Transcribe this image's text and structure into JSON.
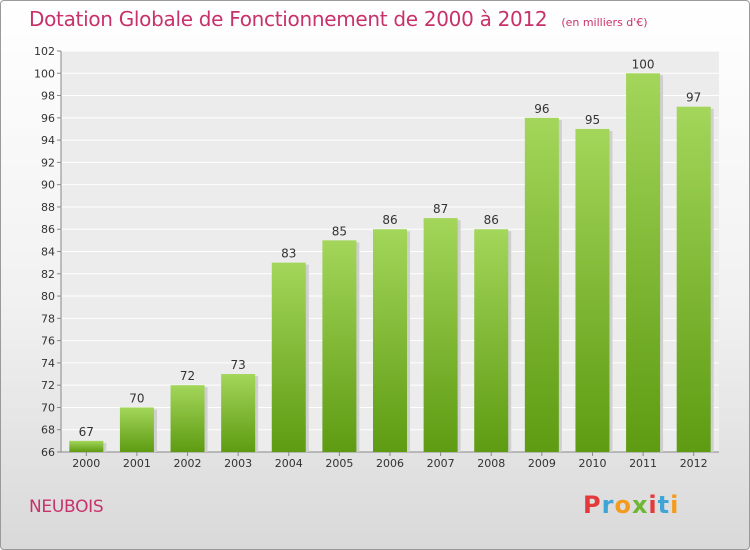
{
  "header": {
    "title": "Dotation Globale de Fonctionnement de 2000 à 2012",
    "subtitle": "(en milliers d'€)"
  },
  "footer": {
    "commune": "NEUBOIS",
    "logo": "Proxiti"
  },
  "colors": {
    "title": "#c8326a",
    "bar_light": "#a3d65a",
    "bar_dark": "#5e9b12",
    "logo": [
      "#e4393b",
      "#3fa4d6",
      "#f39b1c",
      "#6fb635",
      "#e4393b",
      "#3fa4d6",
      "#f39b1c"
    ]
  },
  "chart_data": {
    "type": "bar",
    "title": "Dotation Globale de Fonctionnement de 2000 à 2012",
    "subtitle": "(en milliers d'€)",
    "categories": [
      "2000",
      "2001",
      "2002",
      "2003",
      "2004",
      "2005",
      "2006",
      "2007",
      "2008",
      "2009",
      "2010",
      "2011",
      "2012"
    ],
    "values": [
      67,
      70,
      72,
      73,
      83,
      85,
      86,
      87,
      86,
      96,
      95,
      100,
      97
    ],
    "xlabel": "",
    "ylabel": "",
    "ylim": [
      66,
      102
    ],
    "yticks": [
      66,
      68,
      70,
      72,
      74,
      76,
      78,
      80,
      82,
      84,
      86,
      88,
      90,
      92,
      94,
      96,
      98,
      100,
      102
    ],
    "grid": true,
    "legend": "none",
    "data_labels": true
  }
}
